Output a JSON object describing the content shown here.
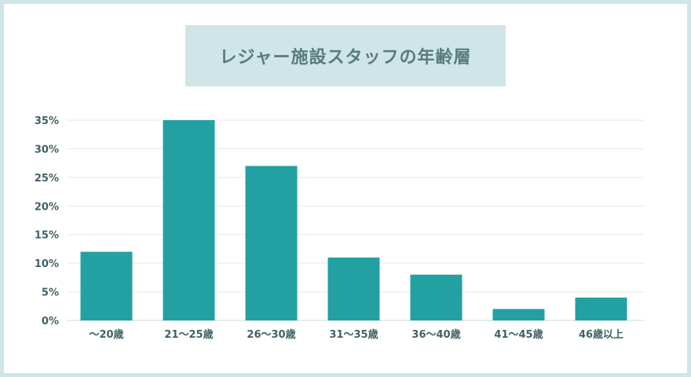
{
  "title": "レジャー施設スタッフの年齢層",
  "colors": {
    "bar": "#23a0a2",
    "grid": "#e6eaea",
    "axis_text": "#3f6166",
    "title_bg": "#cfe5e7",
    "title_text": "#5a7b7e"
  },
  "chart_data": {
    "type": "bar",
    "title": "レジャー施設スタッフの年齢層",
    "categories": [
      "～20歳",
      "21～25歳",
      "26～30歳",
      "31～35歳",
      "36～40歳",
      "41～45歳",
      "46歳以上"
    ],
    "values": [
      12,
      35,
      27,
      11,
      8,
      2,
      4
    ],
    "unit": "%",
    "ylim": [
      0,
      35
    ],
    "yticks": [
      "0%",
      "5%",
      "10%",
      "15%",
      "20%",
      "25%",
      "30%",
      "35%"
    ],
    "ytick_values": [
      0,
      5,
      10,
      15,
      20,
      25,
      30,
      35
    ],
    "grid": true,
    "legend": "none"
  }
}
